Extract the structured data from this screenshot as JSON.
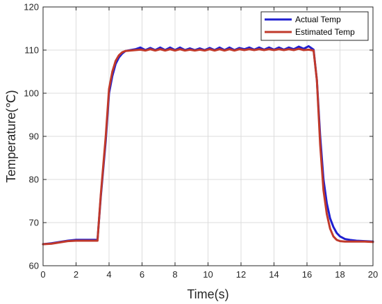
{
  "chart_data": {
    "type": "line",
    "title": "",
    "xlabel": "Time(s)",
    "ylabel": "Temperature(℃)",
    "xlim": [
      0,
      20
    ],
    "ylim": [
      60,
      120
    ],
    "xticks": [
      0,
      2,
      4,
      6,
      8,
      10,
      12,
      14,
      16,
      18,
      20
    ],
    "yticks": [
      60,
      70,
      80,
      90,
      100,
      110,
      120
    ],
    "grid": true,
    "legend_position": "top-right",
    "series": [
      {
        "name": "Actual Temp",
        "color": "#1f1fd0",
        "x": [
          0,
          0.5,
          1,
          1.5,
          2,
          2.5,
          3,
          3.3,
          3.5,
          3.8,
          4,
          4.2,
          4.4,
          4.6,
          4.8,
          5,
          5.3,
          5.6,
          5.9,
          6.2,
          6.5,
          6.8,
          7.1,
          7.4,
          7.7,
          8,
          8.3,
          8.6,
          8.9,
          9.2,
          9.5,
          9.8,
          10.1,
          10.4,
          10.7,
          11,
          11.3,
          11.6,
          11.9,
          12.2,
          12.5,
          12.8,
          13.1,
          13.4,
          13.7,
          14,
          14.3,
          14.6,
          14.9,
          15.2,
          15.5,
          15.8,
          16.1,
          16.4,
          16.6,
          16.8,
          17,
          17.2,
          17.4,
          17.6,
          17.8,
          18,
          18.3,
          18.6,
          19,
          19.5,
          20
        ],
        "y": [
          65,
          65.2,
          65.5,
          65.8,
          66,
          66,
          66,
          66,
          76,
          89,
          100,
          104,
          106.8,
          108.3,
          109.2,
          109.8,
          110,
          110.2,
          110.6,
          110,
          110.5,
          110,
          110.6,
          110,
          110.6,
          110,
          110.6,
          110,
          110.4,
          110,
          110.4,
          110,
          110.5,
          110,
          110.6,
          110,
          110.6,
          110,
          110.5,
          110.2,
          110.6,
          110.1,
          110.6,
          110.1,
          110.6,
          110.1,
          110.6,
          110.1,
          110.6,
          110.2,
          110.8,
          110.3,
          110.9,
          110.1,
          103,
          90,
          80,
          74.5,
          71,
          69,
          67.6,
          66.8,
          66.2,
          66,
          65.8,
          65.7,
          65.6
        ]
      },
      {
        "name": "Estimated Temp",
        "color": "#c0392b",
        "x": [
          0,
          0.5,
          1,
          1.5,
          2,
          2.5,
          3,
          3.3,
          3.5,
          3.8,
          4,
          4.2,
          4.4,
          4.6,
          4.8,
          5,
          5.3,
          5.6,
          5.9,
          6.2,
          6.5,
          6.8,
          7.1,
          7.4,
          7.7,
          8,
          8.3,
          8.6,
          8.9,
          9.2,
          9.5,
          9.8,
          10.1,
          10.4,
          10.7,
          11,
          11.3,
          11.6,
          11.9,
          12.2,
          12.5,
          12.8,
          13.1,
          13.4,
          13.7,
          14,
          14.3,
          14.6,
          14.9,
          15.2,
          15.5,
          15.8,
          16.1,
          16.4,
          16.6,
          16.8,
          17,
          17.2,
          17.4,
          17.6,
          17.8,
          18,
          18.3,
          18.6,
          19,
          19.5,
          20
        ],
        "y": [
          65,
          65.1,
          65.4,
          65.7,
          65.8,
          65.8,
          65.8,
          65.8,
          76.5,
          90,
          101,
          105,
          107.5,
          108.8,
          109.5,
          109.8,
          109.9,
          110,
          110.1,
          109.9,
          110.2,
          109.9,
          110.2,
          109.9,
          110.2,
          109.9,
          110.2,
          109.9,
          110.1,
          109.9,
          110.1,
          109.9,
          110.2,
          109.9,
          110.2,
          109.9,
          110.2,
          109.9,
          110.2,
          110,
          110.2,
          110,
          110.2,
          110,
          110.2,
          110,
          110.2,
          110,
          110.2,
          110,
          110.3,
          110,
          110.1,
          109.9,
          103,
          88,
          77.5,
          72,
          68.6,
          66.8,
          66,
          65.7,
          65.6,
          65.6,
          65.6,
          65.6,
          65.5
        ]
      }
    ]
  }
}
